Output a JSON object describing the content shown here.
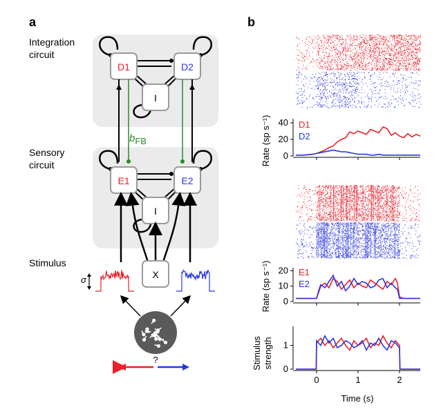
{
  "panel_a": {
    "letter": "a",
    "integration_label_1": "Integration",
    "integration_label_2": "circuit",
    "sensory_label_1": "Sensory",
    "sensory_label_2": "circuit",
    "stimulus_label": "Stimulus",
    "nodes": {
      "d1": "D1",
      "d2": "D2",
      "i_top": "I",
      "e1": "E1",
      "e2": "E2",
      "i_bottom": "I",
      "x": "X"
    },
    "feedback_label": "b",
    "feedback_sub": "FB",
    "sigma": "σ",
    "question": "?"
  },
  "panel_b": {
    "letter": "b",
    "rate_ylabel": "Rate (sp s⁻¹)",
    "stim_ylabel_1": "Stimulus",
    "stim_ylabel_2": "strength",
    "xlabel": "Time (s)"
  },
  "colors": {
    "red": "#e8202a",
    "blue": "#2a36e0",
    "green": "#2a8a2a",
    "gray_bg": "#ebebeb",
    "node_border": "#9a9a9a",
    "dark_circle": "#5a5a5a"
  },
  "chart_data": [
    {
      "type": "line",
      "title": "",
      "xlabel": "",
      "ylabel": "Rate (sp s⁻¹)",
      "xlim": [
        -0.5,
        2.5
      ],
      "ylim": [
        0,
        45
      ],
      "yticks": [
        0,
        20,
        40
      ],
      "series": [
        {
          "name": "D1",
          "color": "red",
          "x": [
            -0.5,
            -0.3,
            -0.1,
            0,
            0.1,
            0.2,
            0.3,
            0.4,
            0.5,
            0.6,
            0.7,
            0.8,
            0.9,
            1.0,
            1.1,
            1.2,
            1.3,
            1.4,
            1.5,
            1.6,
            1.7,
            1.8,
            1.9,
            2.0,
            2.1,
            2.2,
            2.3,
            2.4,
            2.5
          ],
          "values": [
            1,
            1,
            2,
            3,
            5,
            7,
            10,
            12,
            17,
            20,
            22,
            29,
            27,
            30,
            28,
            26,
            32,
            30,
            28,
            35,
            33,
            25,
            28,
            24,
            22,
            27,
            23,
            26,
            24
          ]
        },
        {
          "name": "D2",
          "color": "blue",
          "x": [
            -0.5,
            -0.3,
            -0.1,
            0,
            0.1,
            0.2,
            0.3,
            0.4,
            0.5,
            0.6,
            0.7,
            0.8,
            0.9,
            1.0,
            1.1,
            1.2,
            1.3,
            1.4,
            1.5,
            1.6,
            1.7,
            1.8,
            1.9,
            2.0,
            2.1,
            2.2,
            2.3,
            2.4,
            2.5
          ],
          "values": [
            1,
            1,
            2,
            3,
            4,
            5,
            6,
            7,
            6,
            5,
            5,
            4,
            3,
            2,
            2,
            2,
            1,
            1,
            2,
            1,
            1,
            1,
            1,
            1,
            1,
            1,
            1,
            1,
            1
          ]
        }
      ]
    },
    {
      "type": "line",
      "title": "",
      "xlabel": "",
      "ylabel": "Rate (sp s⁻¹)",
      "xlim": [
        -0.5,
        2.5
      ],
      "ylim": [
        0,
        22
      ],
      "yticks": [
        0,
        10,
        20
      ],
      "series": [
        {
          "name": "E1",
          "color": "red",
          "x": [
            -0.5,
            -0.3,
            -0.1,
            0,
            0.05,
            0.1,
            0.2,
            0.3,
            0.4,
            0.5,
            0.6,
            0.7,
            0.8,
            0.9,
            1.0,
            1.1,
            1.2,
            1.3,
            1.4,
            1.5,
            1.6,
            1.7,
            1.8,
            1.9,
            1.95,
            2.0,
            2.1,
            2.3,
            2.5
          ],
          "values": [
            2,
            2,
            2,
            2,
            6,
            10,
            12,
            9,
            15,
            13,
            8,
            11,
            14,
            9,
            12,
            10,
            9,
            14,
            12,
            10,
            8,
            13,
            11,
            15,
            12,
            3,
            2,
            2,
            2
          ]
        },
        {
          "name": "E2",
          "color": "blue",
          "x": [
            -0.5,
            -0.3,
            -0.1,
            0,
            0.05,
            0.1,
            0.2,
            0.3,
            0.4,
            0.5,
            0.6,
            0.7,
            0.8,
            0.9,
            1.0,
            1.1,
            1.2,
            1.3,
            1.4,
            1.5,
            1.6,
            1.7,
            1.8,
            1.9,
            1.95,
            2.0,
            2.1,
            2.3,
            2.5
          ],
          "values": [
            2,
            2,
            2,
            2,
            7,
            11,
            9,
            13,
            17,
            10,
            13,
            7,
            10,
            15,
            11,
            13,
            12,
            9,
            10,
            14,
            15,
            9,
            12,
            9,
            8,
            2,
            2,
            2,
            2
          ]
        }
      ]
    },
    {
      "type": "line",
      "title": "",
      "xlabel": "Time (s)",
      "ylabel": "Stimulus strength",
      "xlim": [
        -0.5,
        2.5
      ],
      "ylim": [
        0,
        1.8
      ],
      "xticks": [
        0,
        1,
        2
      ],
      "yticks": [
        0,
        1
      ],
      "series": [
        {
          "name": "",
          "color": "red",
          "x": [
            -0.5,
            -0.01,
            0,
            0.1,
            0.2,
            0.3,
            0.4,
            0.5,
            0.6,
            0.7,
            0.8,
            0.9,
            1.0,
            1.1,
            1.2,
            1.3,
            1.4,
            1.5,
            1.6,
            1.7,
            1.8,
            1.9,
            2.0,
            2.01,
            2.5
          ],
          "values": [
            0,
            0,
            1.1,
            1.3,
            1.0,
            1.2,
            0.9,
            1.1,
            1.3,
            1.0,
            0.8,
            1.2,
            1.0,
            1.1,
            1.3,
            0.9,
            1.1,
            1.0,
            1.4,
            1.1,
            0.9,
            1.2,
            1.0,
            0,
            0
          ]
        },
        {
          "name": "",
          "color": "blue",
          "x": [
            -0.5,
            -0.01,
            0,
            0.1,
            0.2,
            0.3,
            0.4,
            0.5,
            0.6,
            0.7,
            0.8,
            0.9,
            1.0,
            1.1,
            1.2,
            1.3,
            1.4,
            1.5,
            1.6,
            1.7,
            1.8,
            1.9,
            2.0,
            2.01,
            2.5
          ],
          "values": [
            0,
            0,
            1.2,
            1.0,
            1.4,
            1.1,
            1.3,
            0.9,
            1.0,
            1.2,
            1.1,
            0.9,
            1.0,
            1.2,
            0.8,
            1.1,
            1.0,
            1.3,
            1.0,
            0.8,
            1.2,
            1.1,
            0.9,
            0,
            0
          ]
        }
      ]
    }
  ]
}
